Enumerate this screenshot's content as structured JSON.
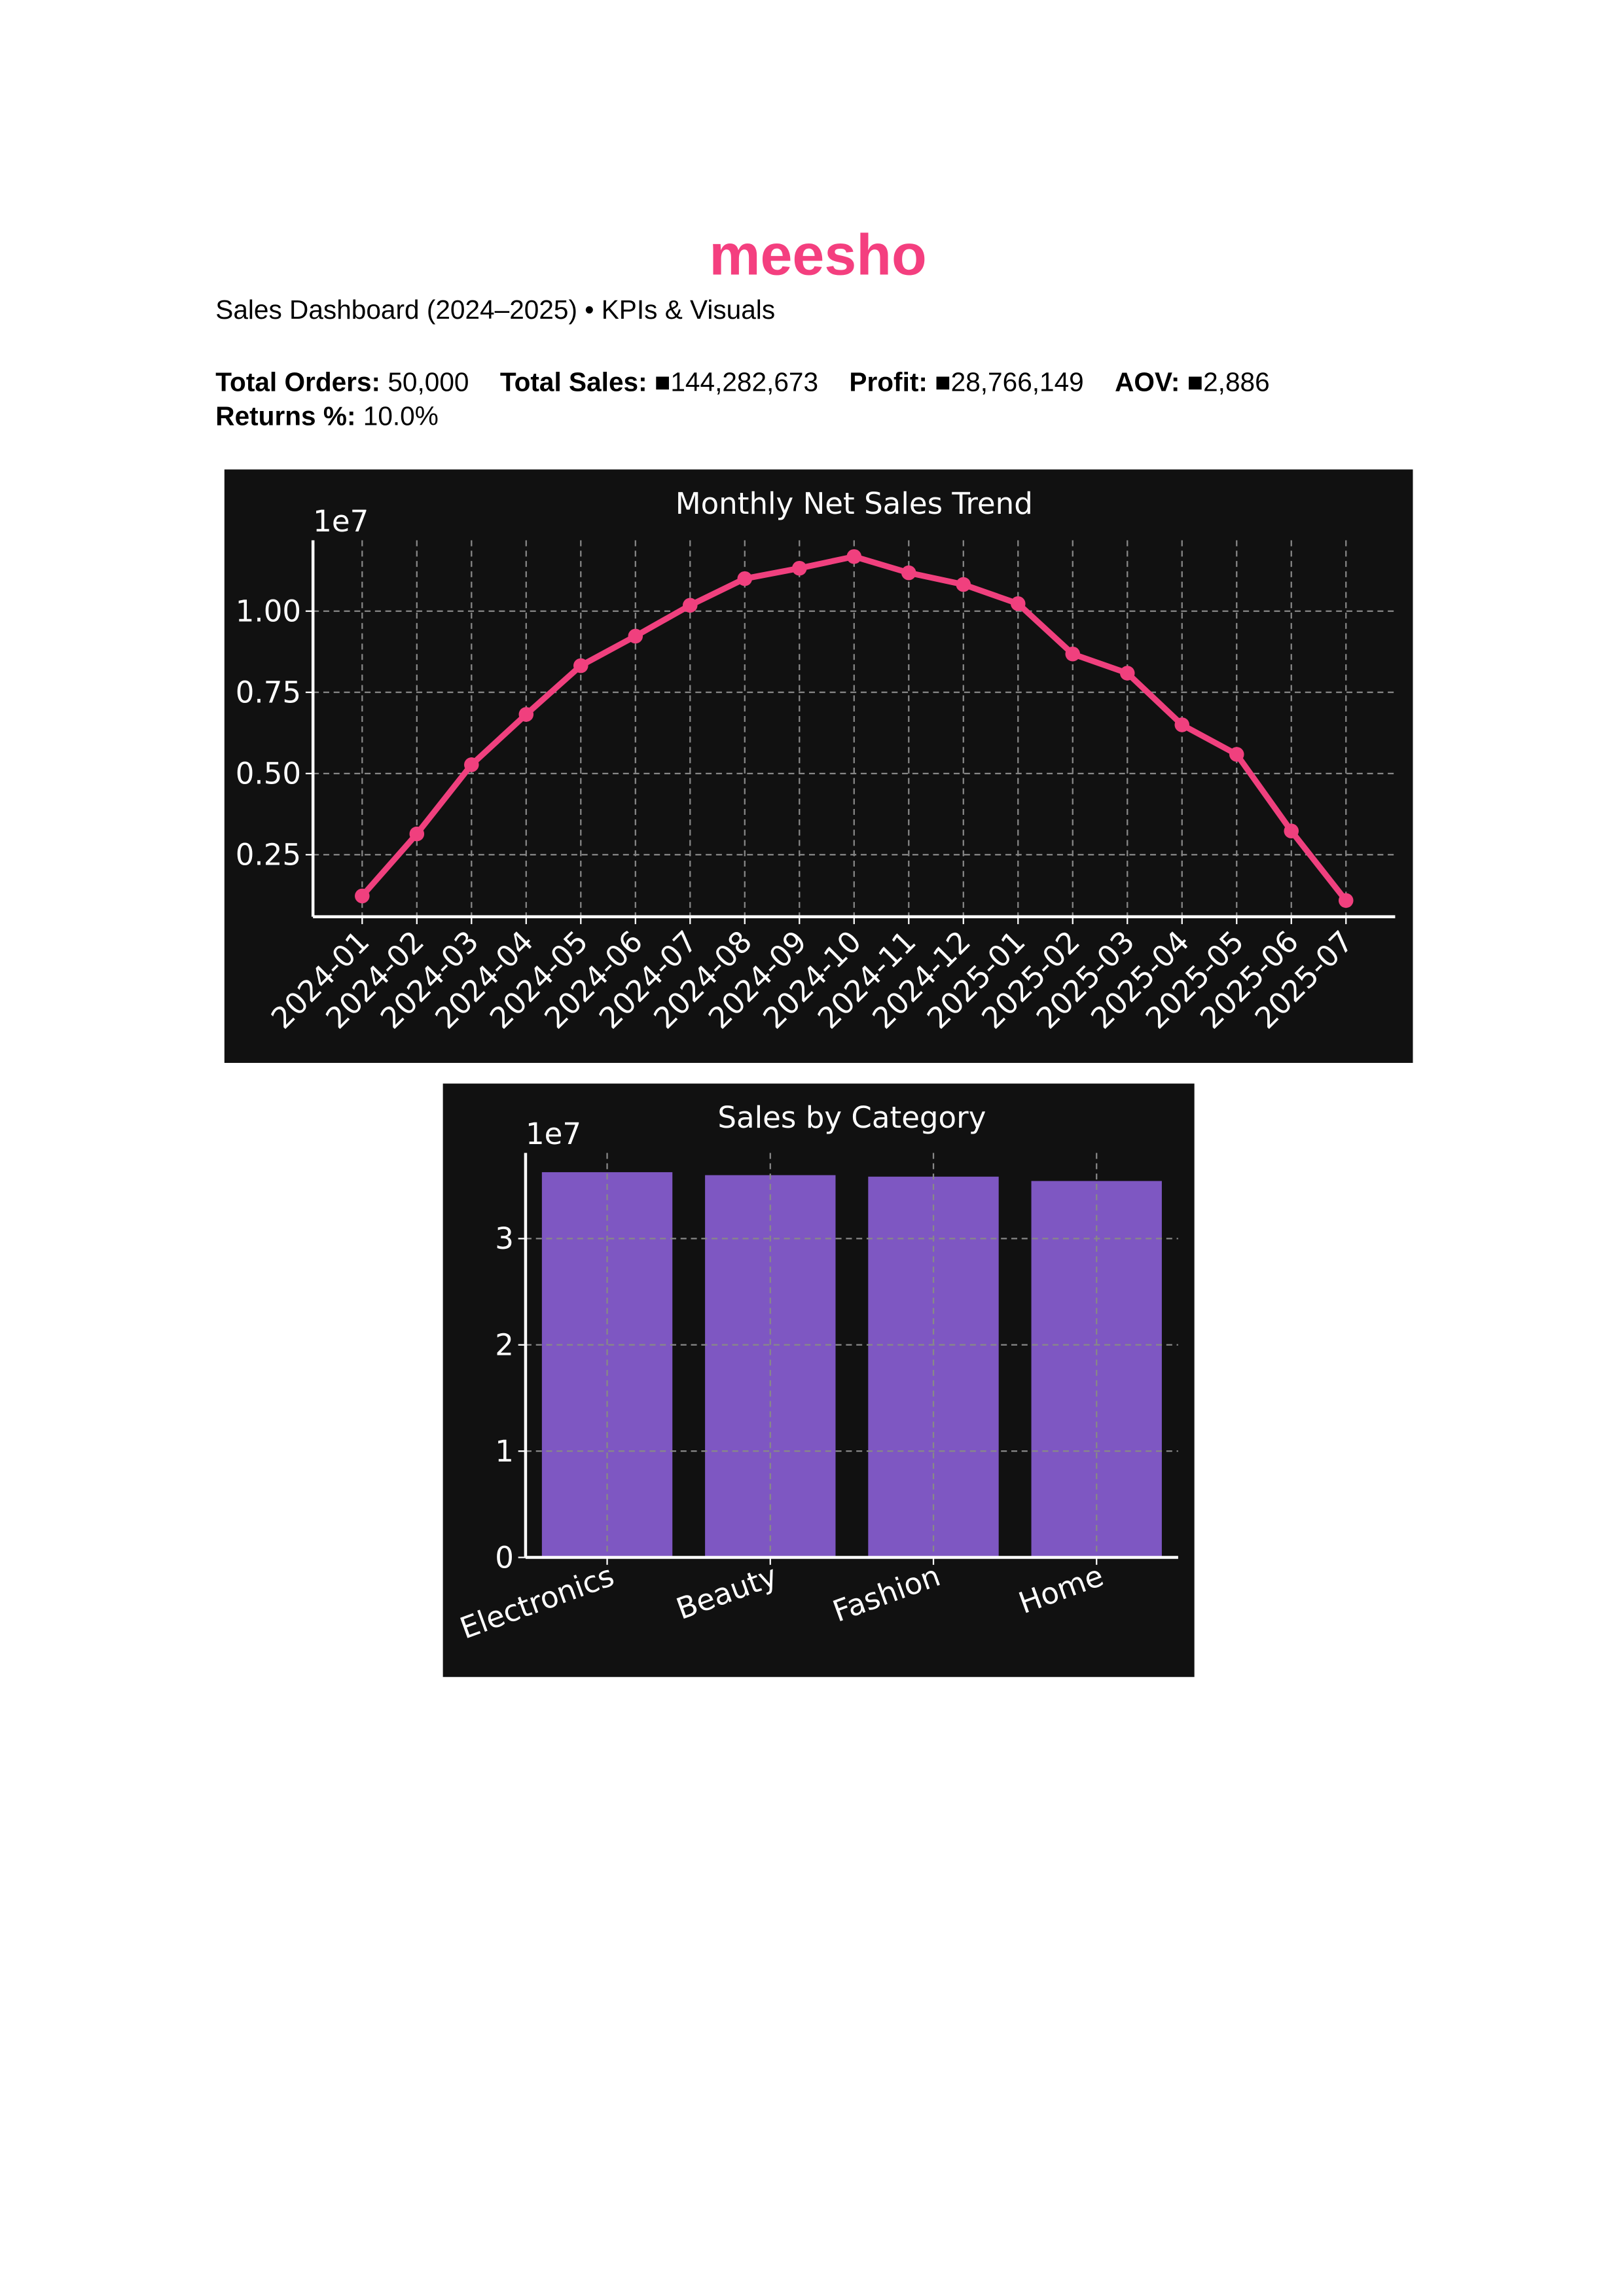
{
  "header": {
    "title": "meesho",
    "subtitle": "Sales Dashboard (2024–2025) • KPIs & Visuals"
  },
  "kpis": [
    {
      "label": "Total Orders:",
      "value": "50,000"
    },
    {
      "label": "Total Sales:",
      "value": "■144,282,673"
    },
    {
      "label": "Profit:",
      "value": "■28,766,149"
    },
    {
      "label": "AOV:",
      "value": "■2,886"
    },
    {
      "label": "Returns %:",
      "value": "10.0%"
    }
  ],
  "chart_data": [
    {
      "type": "line",
      "title": "Monthly Net Sales Trend",
      "y_offset_label": "1e7",
      "color": "#f0407e",
      "grid": true,
      "categories": [
        "2024-01",
        "2024-02",
        "2024-03",
        "2024-04",
        "2024-05",
        "2024-06",
        "2024-07",
        "2024-08",
        "2024-09",
        "2024-10",
        "2024-11",
        "2024-12",
        "2025-01",
        "2025-02",
        "2025-03",
        "2025-04",
        "2025-05",
        "2025-06",
        "2025-07"
      ],
      "values": [
        0.123,
        0.314,
        0.527,
        0.682,
        0.832,
        0.923,
        1.018,
        1.1,
        1.132,
        1.168,
        1.118,
        1.082,
        1.023,
        0.868,
        0.809,
        0.65,
        0.559,
        0.323,
        0.109
      ],
      "ylim": [
        0.059,
        1.218
      ],
      "yticks": [
        {
          "value": 0.25,
          "label": "0.25"
        },
        {
          "value": 0.5,
          "label": "0.50"
        },
        {
          "value": 0.75,
          "label": "0.75"
        },
        {
          "value": 1,
          "label": "1.00"
        }
      ]
    },
    {
      "type": "bar",
      "title": "Sales by Category",
      "y_offset_label": "1e7",
      "color": "#7e57c2",
      "grid": true,
      "categories": [
        "Electronics",
        "Beauty",
        "Fashion",
        "Home"
      ],
      "values": [
        3.625,
        3.597,
        3.583,
        3.542
      ],
      "ylim": [
        0,
        3.806
      ],
      "yticks": [
        0,
        1,
        2,
        3
      ]
    }
  ]
}
